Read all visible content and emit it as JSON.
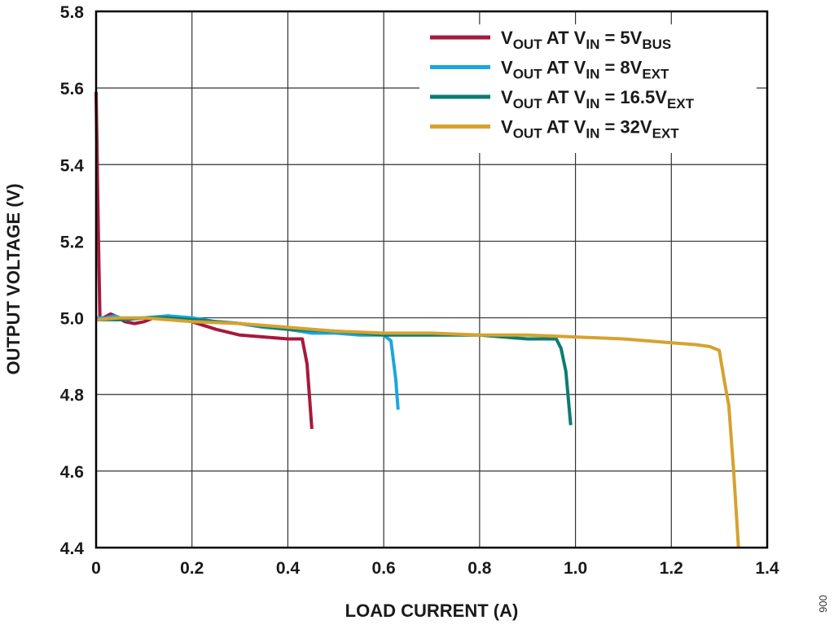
{
  "chart_data": {
    "type": "line",
    "xlabel": "LOAD CURRENT (A)",
    "ylabel": "OUTPUT VOLTAGE (V)",
    "xlim": [
      0,
      1.4
    ],
    "ylim": [
      4.4,
      5.8
    ],
    "xticks": [
      0,
      0.2,
      0.4,
      0.6,
      0.8,
      1.0,
      1.2,
      1.4
    ],
    "xtick_labels": [
      "0",
      "0.2",
      "0.4",
      "0.6",
      "0.8",
      "1.0",
      "1.2",
      "1.4"
    ],
    "yticks": [
      4.4,
      4.6,
      4.8,
      5.0,
      5.2,
      5.4,
      5.6,
      5.8
    ],
    "ytick_labels": [
      "4.4",
      "4.6",
      "4.8",
      "5.0",
      "5.2",
      "5.4",
      "5.6",
      "5.8"
    ],
    "grid": true,
    "legend_position": "top-right",
    "figure_id": "006",
    "series": [
      {
        "name": "VOUT AT VIN = 5VBUS",
        "label_parts": [
          {
            "t": "V",
            "sub": false
          },
          {
            "t": "OUT",
            "sub": true
          },
          {
            "t": " AT V",
            "sub": false
          },
          {
            "t": "IN",
            "sub": true
          },
          {
            "t": " = 5V",
            "sub": false
          },
          {
            "t": "BUS",
            "sub": true
          }
        ],
        "color": "#A6193C",
        "x": [
          0,
          0.005,
          0.008,
          0.015,
          0.03,
          0.04,
          0.06,
          0.08,
          0.1,
          0.12,
          0.15,
          0.17,
          0.2,
          0.25,
          0.3,
          0.35,
          0.4,
          0.43,
          0.44,
          0.45
        ],
        "y": [
          5.59,
          5.2,
          5.0,
          5.0,
          5.01,
          5.005,
          4.99,
          4.985,
          4.99,
          5.0,
          5.005,
          5.0,
          4.99,
          4.97,
          4.955,
          4.95,
          4.945,
          4.945,
          4.88,
          4.71
        ]
      },
      {
        "name": "VOUT AT VIN = 8VEXT",
        "label_parts": [
          {
            "t": "V",
            "sub": false
          },
          {
            "t": "OUT",
            "sub": true
          },
          {
            "t": " AT V",
            "sub": false
          },
          {
            "t": "IN",
            "sub": true
          },
          {
            "t": " = 8V",
            "sub": false
          },
          {
            "t": "EXT",
            "sub": true
          }
        ],
        "color": "#1AA7DD",
        "x": [
          0,
          0.02,
          0.04,
          0.06,
          0.1,
          0.15,
          0.2,
          0.25,
          0.3,
          0.35,
          0.4,
          0.45,
          0.5,
          0.55,
          0.6,
          0.615,
          0.625,
          0.63
        ],
        "y": [
          5.0,
          5.0,
          5.005,
          4.995,
          5.0,
          5.005,
          5.0,
          4.99,
          4.985,
          4.975,
          4.97,
          4.96,
          4.96,
          4.955,
          4.955,
          4.94,
          4.84,
          4.76
        ]
      },
      {
        "name": "VOUT AT VIN = 16.5VEXT",
        "label_parts": [
          {
            "t": "V",
            "sub": false
          },
          {
            "t": "OUT",
            "sub": true
          },
          {
            "t": " AT V",
            "sub": false
          },
          {
            "t": "IN",
            "sub": true
          },
          {
            "t": " = 16.5V",
            "sub": false
          },
          {
            "t": "EXT",
            "sub": true
          }
        ],
        "color": "#0B7C74",
        "x": [
          0,
          0.05,
          0.1,
          0.15,
          0.2,
          0.3,
          0.4,
          0.5,
          0.6,
          0.7,
          0.8,
          0.9,
          0.96,
          0.97,
          0.98,
          0.99
        ],
        "y": [
          4.995,
          4.995,
          5.0,
          5.0,
          4.995,
          4.985,
          4.97,
          4.965,
          4.955,
          4.955,
          4.955,
          4.945,
          4.945,
          4.92,
          4.86,
          4.72
        ]
      },
      {
        "name": "VOUT AT VIN = 32VEXT",
        "label_parts": [
          {
            "t": "V",
            "sub": false
          },
          {
            "t": "OUT",
            "sub": true
          },
          {
            "t": " AT V",
            "sub": false
          },
          {
            "t": "IN",
            "sub": true
          },
          {
            "t": " = 32V",
            "sub": false
          },
          {
            "t": "EXT",
            "sub": true
          }
        ],
        "color": "#D6A22E",
        "x": [
          0,
          0.05,
          0.1,
          0.2,
          0.3,
          0.4,
          0.5,
          0.6,
          0.7,
          0.8,
          0.9,
          1.0,
          1.1,
          1.2,
          1.25,
          1.28,
          1.3,
          1.31,
          1.32,
          1.33,
          1.34
        ],
        "y": [
          4.995,
          5.0,
          5.0,
          4.99,
          4.985,
          4.975,
          4.965,
          4.96,
          4.96,
          4.955,
          4.955,
          4.95,
          4.945,
          4.935,
          4.93,
          4.925,
          4.915,
          4.84,
          4.77,
          4.6,
          4.4
        ]
      }
    ]
  }
}
